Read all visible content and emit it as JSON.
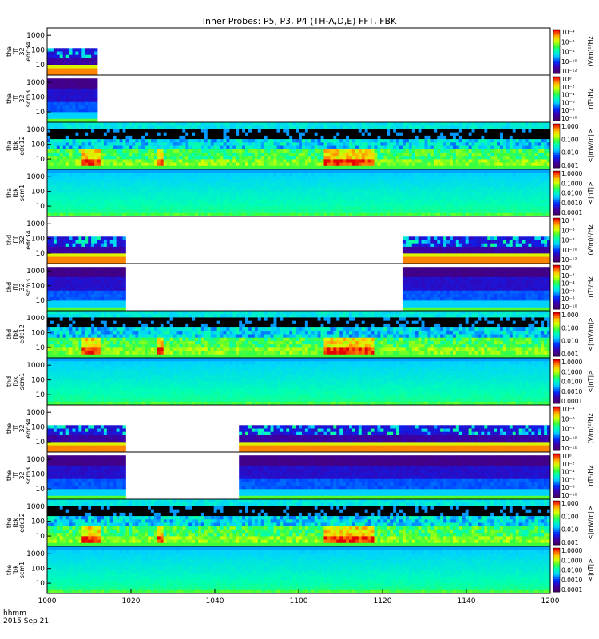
{
  "chart_data": {
    "type": "heatmap",
    "title": "Inner Probes: P5, P3, P4 (TH-A,D,E) FFT, FBK",
    "x_axis": {
      "range_minutes": [
        0,
        120
      ],
      "ticks": [
        "1000",
        "1020",
        "1040",
        "1100",
        "1120",
        "1140",
        "1200"
      ],
      "label_line1": "hhmm",
      "label_line2": "2015 Sep 21"
    },
    "panels": [
      {
        "label": [
          "tha",
          "fff",
          "32",
          "edc34"
        ],
        "y_ticks": [
          "1000",
          "100",
          "10"
        ],
        "cbar_ticks": [
          "10⁻⁴",
          "10⁻⁶",
          "10⁻⁸",
          "10⁻¹⁰",
          "10⁻¹²"
        ],
        "cbar_label": "(V/m)²/Hz",
        "coverage_minutes": [
          [
            0,
            12
          ]
        ],
        "style": "edc34"
      },
      {
        "label": [
          "tha",
          "fff",
          "32",
          "scm3"
        ],
        "y_ticks": [
          "1000",
          "100",
          "10"
        ],
        "cbar_ticks": [
          "10⁰",
          "10⁻²",
          "10⁻⁴",
          "10⁻⁶",
          "10⁻⁸",
          "10⁻¹⁰"
        ],
        "cbar_label": "nT²/Hz",
        "coverage_minutes": [
          [
            0,
            12
          ]
        ],
        "style": "scm3"
      },
      {
        "label": [
          "tha",
          "fbk",
          "edc12"
        ],
        "y_ticks": [
          "1000",
          "100",
          "10"
        ],
        "cbar_ticks": [
          "1.000",
          "0.100",
          "0.010",
          "0.001"
        ],
        "cbar_label": "<|mV/m|>",
        "coverage_minutes": [
          [
            0,
            120
          ]
        ],
        "style": "edc12"
      },
      {
        "label": [
          "tha",
          "fbk",
          "scm1"
        ],
        "y_ticks": [
          "1000",
          "100",
          "10"
        ],
        "cbar_ticks": [
          "1.0000",
          "0.1000",
          "0.0100",
          "0.0010",
          "0.0001"
        ],
        "cbar_label": "<|nT|>",
        "coverage_minutes": [
          [
            0,
            120
          ]
        ],
        "style": "scm1"
      },
      {
        "label": [
          "thd",
          "fff",
          "32",
          "edc34"
        ],
        "y_ticks": [
          "1000",
          "100",
          "10"
        ],
        "cbar_ticks": [
          "10⁻⁴",
          "10⁻⁶",
          "10⁻⁸",
          "10⁻¹⁰",
          "10⁻¹²"
        ],
        "cbar_label": "(V/m)²/Hz",
        "coverage_minutes": [
          [
            0,
            19
          ],
          [
            85,
            120
          ]
        ],
        "style": "edc34"
      },
      {
        "label": [
          "thd",
          "fff",
          "32",
          "scm3"
        ],
        "y_ticks": [
          "1000",
          "100",
          "10"
        ],
        "cbar_ticks": [
          "10⁰",
          "10⁻²",
          "10⁻⁴",
          "10⁻⁶",
          "10⁻⁸",
          "10⁻¹⁰"
        ],
        "cbar_label": "nT²/Hz",
        "coverage_minutes": [
          [
            0,
            19
          ],
          [
            85,
            120
          ]
        ],
        "style": "scm3"
      },
      {
        "label": [
          "thd",
          "fbk",
          "edc12"
        ],
        "y_ticks": [
          "1000",
          "100",
          "10"
        ],
        "cbar_ticks": [
          "1.000",
          "0.100",
          "0.010",
          "0.001"
        ],
        "cbar_label": "<|mV/m|>",
        "coverage_minutes": [
          [
            0,
            120
          ]
        ],
        "style": "edc12"
      },
      {
        "label": [
          "thd",
          "fbk",
          "scm1"
        ],
        "y_ticks": [
          "1000",
          "100",
          "10"
        ],
        "cbar_ticks": [
          "1.0000",
          "0.1000",
          "0.0100",
          "0.0010",
          "0.0001"
        ],
        "cbar_label": "<|nT|>",
        "coverage_minutes": [
          [
            0,
            120
          ]
        ],
        "style": "scm1"
      },
      {
        "label": [
          "the",
          "fff",
          "32",
          "edc34"
        ],
        "y_ticks": [
          "1000",
          "100",
          "10"
        ],
        "cbar_ticks": [
          "10⁻⁴",
          "10⁻⁶",
          "10⁻⁸",
          "10⁻¹⁰",
          "10⁻¹²"
        ],
        "cbar_label": "(V/m)²/Hz",
        "coverage_minutes": [
          [
            0,
            19
          ],
          [
            46,
            120
          ]
        ],
        "style": "edc34"
      },
      {
        "label": [
          "the",
          "fff",
          "32",
          "scm3"
        ],
        "y_ticks": [
          "1000",
          "100",
          "10"
        ],
        "cbar_ticks": [
          "10⁰",
          "10⁻²",
          "10⁻⁴",
          "10⁻⁶",
          "10⁻⁸",
          "10⁻¹⁰"
        ],
        "cbar_label": "nT²/Hz",
        "coverage_minutes": [
          [
            0,
            19
          ],
          [
            46,
            120
          ]
        ],
        "style": "scm3"
      },
      {
        "label": [
          "the",
          "fbk",
          "edc12"
        ],
        "y_ticks": [
          "1000",
          "100",
          "10"
        ],
        "cbar_ticks": [
          "1.000",
          "0.100",
          "0.010",
          "0.001"
        ],
        "cbar_label": "<|mV/m|>",
        "coverage_minutes": [
          [
            0,
            120
          ]
        ],
        "style": "edc12"
      },
      {
        "label": [
          "the",
          "fbk",
          "scm1"
        ],
        "y_ticks": [
          "1000",
          "100",
          "10"
        ],
        "cbar_ticks": [
          "1.0000",
          "0.1000",
          "0.0100",
          "0.0010",
          "0.0001"
        ],
        "cbar_label": "<|nT|>",
        "coverage_minutes": [
          [
            0,
            120
          ]
        ],
        "style": "scm1"
      }
    ]
  }
}
